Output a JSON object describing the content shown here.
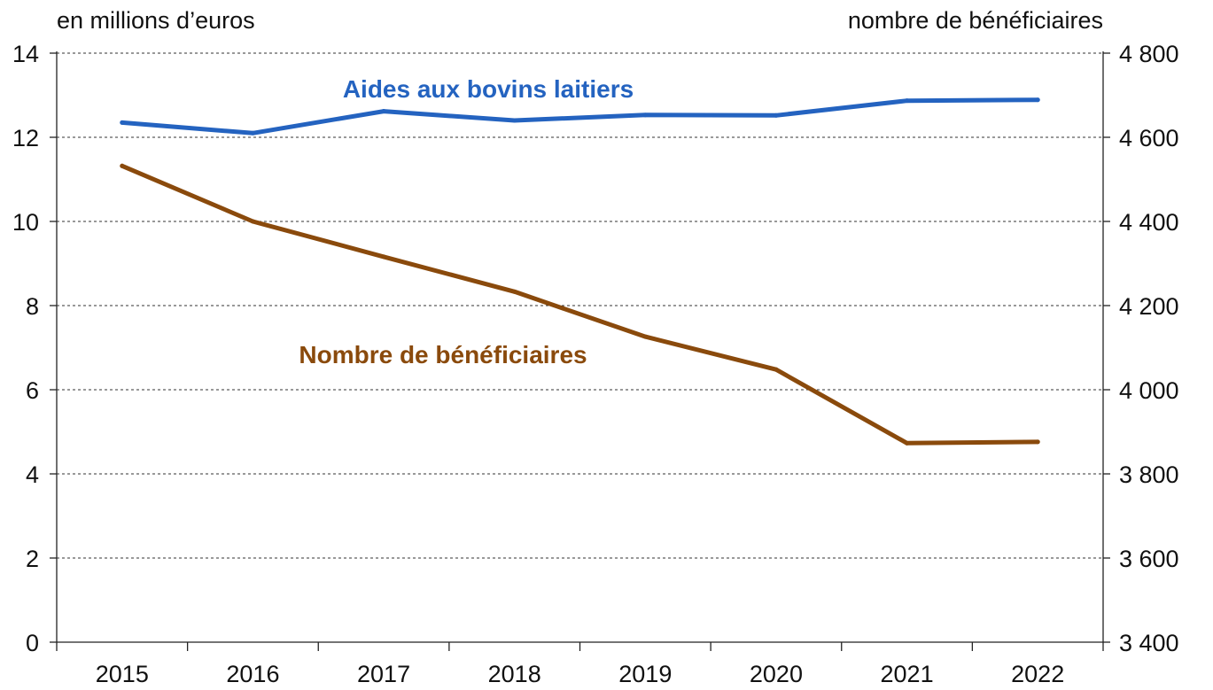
{
  "chart_data": {
    "type": "line",
    "categories": [
      "2015",
      "2016",
      "2017",
      "2018",
      "2019",
      "2020",
      "2021",
      "2022"
    ],
    "left_axis": {
      "label": "en millions d’euros",
      "range": [
        0,
        14
      ],
      "ticks": [
        0,
        2,
        4,
        6,
        8,
        10,
        12,
        14
      ],
      "tick_labels": [
        "0",
        "2",
        "4",
        "6",
        "8",
        "10",
        "12",
        "14"
      ]
    },
    "right_axis": {
      "label": "nombre de bénéficiaires",
      "range": [
        3400,
        4800
      ],
      "ticks": [
        3400,
        3600,
        3800,
        4000,
        4200,
        4400,
        4600,
        4800
      ],
      "tick_labels": [
        "3 400",
        "3 600",
        "3 800",
        "4 000",
        "4 200",
        "4 400",
        "4 600",
        "4 800"
      ]
    },
    "grid": true,
    "series": [
      {
        "name": "Aides aux bovins laitiers",
        "axis": "left",
        "color": "#2463c0",
        "values": [
          12.35,
          12.1,
          12.62,
          12.4,
          12.53,
          12.52,
          12.87,
          12.89
        ]
      },
      {
        "name": "Nombre de bénéficiaires",
        "axis": "right",
        "color": "#8a4a0c",
        "values": [
          4532,
          4400,
          4316,
          4233,
          4126,
          4048,
          3873,
          3876
        ]
      }
    ]
  }
}
